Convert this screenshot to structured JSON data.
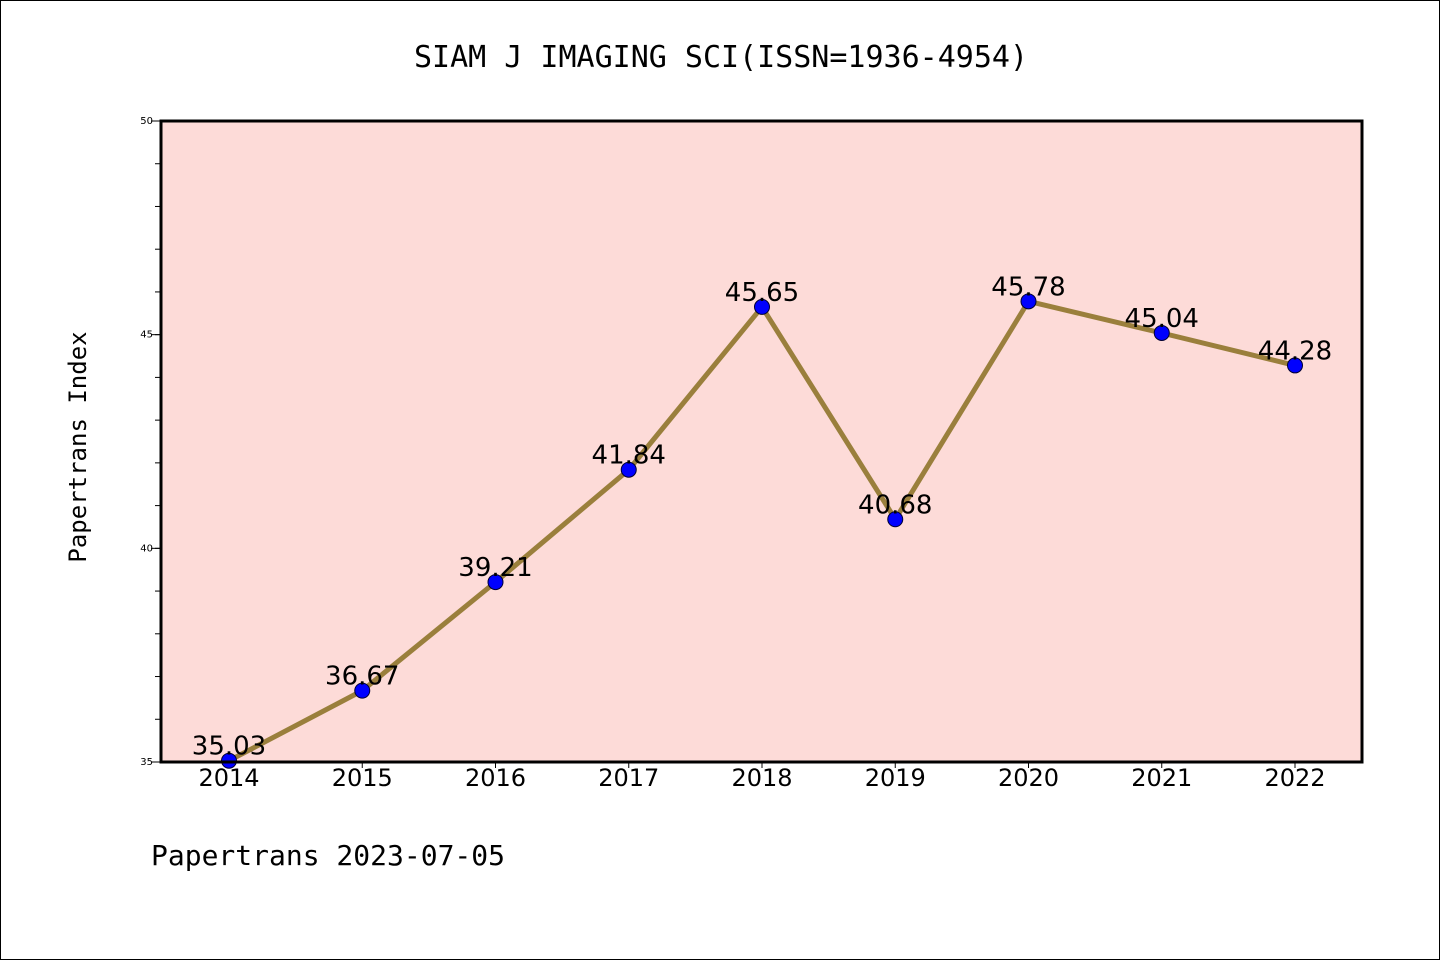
{
  "chart_data": {
    "type": "line",
    "title": "SIAM J IMAGING SCI(ISSN=1936-4954)",
    "ylabel": "Papertrans Index",
    "xlabel": "",
    "footer": "Papertrans 2023-07-05",
    "categories": [
      "2014",
      "2015",
      "2016",
      "2017",
      "2018",
      "2019",
      "2020",
      "2021",
      "2022"
    ],
    "series": [
      {
        "values": [
          35.03,
          36.67,
          39.21,
          41.84,
          45.65,
          40.68,
          45.78,
          45.04,
          44.28
        ],
        "labels": [
          "35.03",
          "36.67",
          "39.21",
          "41.84",
          "45.65",
          "40.68",
          "45.78",
          "45.04",
          "44.28"
        ]
      }
    ],
    "ylim": [
      35,
      50
    ],
    "yticks": [
      "35",
      "40",
      "45",
      "50"
    ],
    "grid": false,
    "colors": {
      "plot_background": "#fddbd8",
      "line": "#9a7f3c",
      "marker": "#0000ff",
      "axis": "#000000"
    }
  }
}
